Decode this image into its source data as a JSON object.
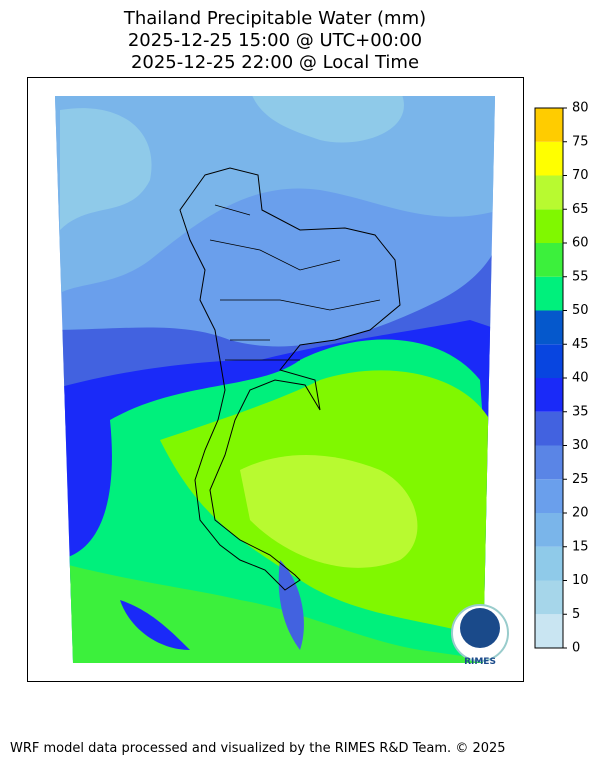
{
  "title": [
    "Thailand Precipitable Water (mm)",
    "2025-12-25 15:00 @ UTC+00:00",
    "2025-12-25 22:00 @ Local Time"
  ],
  "colorbar": {
    "ticks": [
      0,
      5,
      10,
      15,
      20,
      25,
      30,
      35,
      40,
      45,
      50,
      55,
      60,
      65,
      70,
      75,
      80
    ],
    "colors": [
      "#c9e5f2",
      "#a6d6ea",
      "#8fcae9",
      "#7ab5ea",
      "#6a9fec",
      "#5a85e6",
      "#4262e0",
      "#1a2af8",
      "#0845e0",
      "#0558cc",
      "#00f07c",
      "#3cf03c",
      "#80f800",
      "#b8fa30",
      "#ffff00",
      "#ffcc00"
    ]
  },
  "logo": "RIMES",
  "footer": "WRF model data processed and visualized by the RIMES R&D Team. © 2025"
}
